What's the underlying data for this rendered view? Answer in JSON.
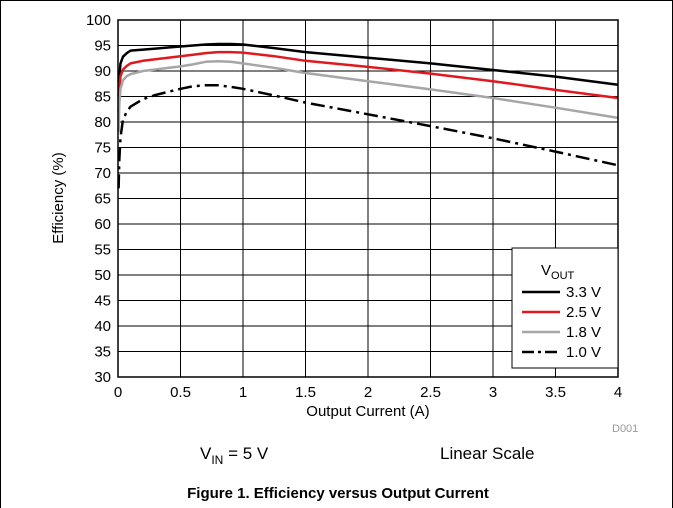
{
  "chart_data": {
    "type": "line",
    "xlabel": "Output Current (A)",
    "ylabel": "Efficiency (%)",
    "xlim": [
      0,
      4
    ],
    "ylim": [
      30,
      100
    ],
    "x_ticks": [
      0,
      0.5,
      1,
      1.5,
      2,
      2.5,
      3,
      3.5,
      4
    ],
    "y_ticks": [
      30,
      35,
      40,
      45,
      50,
      55,
      60,
      65,
      70,
      75,
      80,
      85,
      90,
      95,
      100
    ],
    "grid": true,
    "legend_title_main": "V",
    "legend_title_sub": "OUT",
    "legend_position": "bottom-right",
    "series": [
      {
        "name": "3.3 V",
        "color": "#000000",
        "dash": "solid",
        "x": [
          0.005,
          0.01,
          0.02,
          0.04,
          0.07,
          0.1,
          0.2,
          0.3,
          0.4,
          0.5,
          0.6,
          0.7,
          0.8,
          0.9,
          1.0,
          1.25,
          1.5,
          2.0,
          2.5,
          3.0,
          3.5,
          4.0
        ],
        "y": [
          85,
          89,
          91.5,
          92.8,
          93.5,
          94,
          94.2,
          94.4,
          94.6,
          94.8,
          95,
          95.2,
          95.3,
          95.3,
          95.2,
          94.5,
          93.7,
          92.6,
          91.5,
          90.2,
          88.9,
          87.3
        ]
      },
      {
        "name": "2.5 V",
        "color": "#e0191e",
        "dash": "solid",
        "x": [
          0.005,
          0.01,
          0.02,
          0.04,
          0.07,
          0.1,
          0.2,
          0.3,
          0.4,
          0.5,
          0.6,
          0.7,
          0.8,
          0.9,
          1.0,
          1.25,
          1.5,
          2.0,
          2.5,
          3.0,
          3.5,
          4.0
        ],
        "y": [
          82,
          86.5,
          89,
          90.3,
          91,
          91.5,
          92,
          92.3,
          92.6,
          92.9,
          93.2,
          93.5,
          93.7,
          93.7,
          93.6,
          92.9,
          92,
          90.8,
          89.5,
          88,
          86.3,
          84.7
        ]
      },
      {
        "name": "1.8 V",
        "color": "#a6a6a6",
        "dash": "solid",
        "x": [
          0.005,
          0.01,
          0.02,
          0.04,
          0.07,
          0.1,
          0.2,
          0.3,
          0.4,
          0.5,
          0.6,
          0.7,
          0.8,
          0.9,
          1.0,
          1.25,
          1.5,
          2.0,
          2.5,
          3.0,
          3.5,
          4.0
        ],
        "y": [
          78,
          83.5,
          86.5,
          88.2,
          89,
          89.4,
          90,
          90.3,
          90.6,
          90.9,
          91.3,
          91.8,
          91.9,
          91.8,
          91.5,
          90.6,
          89.6,
          88,
          86.4,
          84.7,
          82.8,
          80.8
        ]
      },
      {
        "name": "1.0 V",
        "color": "#000000",
        "dash": "dashdot",
        "x": [
          0.005,
          0.01,
          0.02,
          0.04,
          0.07,
          0.1,
          0.2,
          0.3,
          0.4,
          0.5,
          0.6,
          0.7,
          0.8,
          0.9,
          1.0,
          1.25,
          1.5,
          2.0,
          2.5,
          3.0,
          3.5,
          4.0
        ],
        "y": [
          67,
          72.5,
          77,
          80.5,
          82,
          83,
          84.5,
          85.3,
          85.9,
          86.5,
          87,
          87.2,
          87.2,
          86.9,
          86.5,
          85.2,
          83.8,
          81.5,
          79.2,
          76.8,
          74.2,
          71.5
        ]
      }
    ]
  },
  "notes": {
    "vin_main": "V",
    "vin_sub": "IN",
    "vin_value": " = 5 V",
    "scale": "Linear Scale",
    "code": "D001"
  },
  "caption": "Figure 1. Efficiency versus Output Current"
}
